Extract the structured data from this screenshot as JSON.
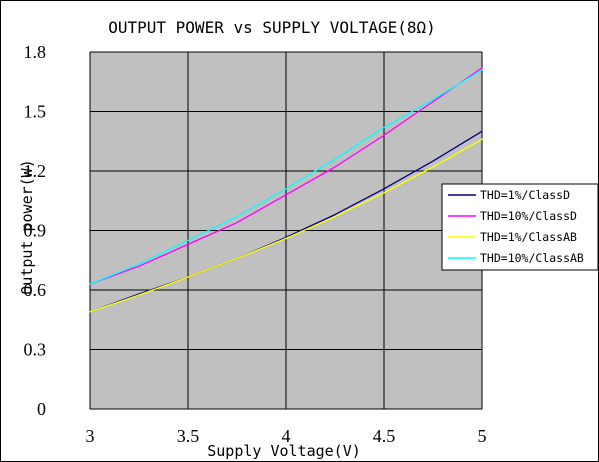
{
  "chart_data": {
    "type": "line",
    "title": "OUTPUT POWER vs SUPPLY VOLTAGE(8Ω)",
    "xlabel": "Supply Voltage(V)",
    "ylabel": "Output power(W)",
    "xlim": [
      3,
      5
    ],
    "ylim": [
      0,
      1.8
    ],
    "xticks": [
      3,
      3.5,
      4,
      4.5,
      5
    ],
    "xtick_labels": [
      "3",
      "3.5",
      "4",
      "4.5",
      "5"
    ],
    "yticks": [
      0,
      0.3,
      0.6,
      0.9,
      1.2,
      1.5,
      1.8
    ],
    "ytick_labels": [
      "0",
      "0.3",
      "0.6",
      "0.9",
      "1.2",
      "1.5",
      "1.8"
    ],
    "grid": true,
    "plot_background": "#c0c0c0",
    "legend_position": "right",
    "series": [
      {
        "name": "THD=1%/ClassD",
        "color": "#000080",
        "x": [
          3,
          3.25,
          3.5,
          3.75,
          4,
          4.25,
          4.5,
          4.75,
          5
        ],
        "y": [
          0.49,
          0.58,
          0.665,
          0.76,
          0.865,
          0.98,
          1.11,
          1.25,
          1.4
        ]
      },
      {
        "name": "THD=10%/ClassD",
        "color": "#ff00ff",
        "x": [
          3,
          3.25,
          3.5,
          3.75,
          4,
          4.25,
          4.5,
          4.75,
          5
        ],
        "y": [
          0.63,
          0.72,
          0.83,
          0.94,
          1.08,
          1.22,
          1.38,
          1.55,
          1.72
        ]
      },
      {
        "name": "THD=1%/ClassAB",
        "color": "#ffff00",
        "x": [
          3,
          3.25,
          3.5,
          3.75,
          4,
          4.25,
          4.5,
          4.75,
          5
        ],
        "y": [
          0.49,
          0.575,
          0.665,
          0.76,
          0.86,
          0.97,
          1.09,
          1.22,
          1.36
        ]
      },
      {
        "name": "THD=10%/ClassAB",
        "color": "#00ffff",
        "x": [
          3,
          3.25,
          3.5,
          3.75,
          4,
          4.25,
          4.5,
          4.75,
          5
        ],
        "y": [
          0.63,
          0.73,
          0.85,
          0.97,
          1.11,
          1.26,
          1.42,
          1.56,
          1.71
        ]
      }
    ]
  }
}
